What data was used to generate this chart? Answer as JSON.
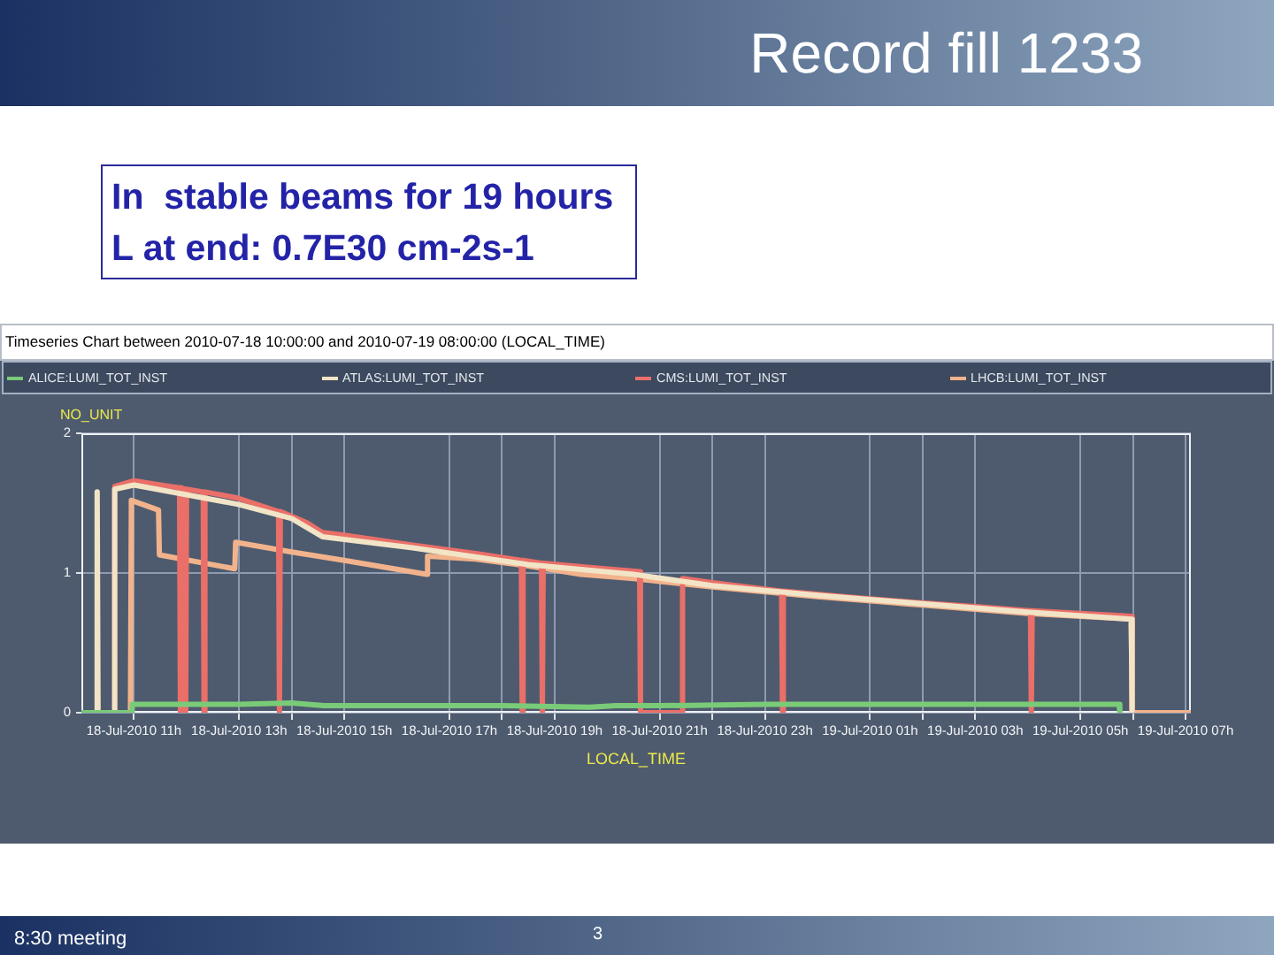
{
  "chart_data": {
    "type": "line",
    "title": "Record fill 1233",
    "subtitle": "Timeseries Chart between 2010-07-18 10:00:00 and 2010-07-19 08:00:00 (LOCAL_TIME)",
    "xlabel": "LOCAL_TIME",
    "ylabel": "NO_UNIT",
    "annotations": [
      "In  stable beams for 19 hours",
      "L at end: 0.7E30 cm-2s-1",
      "8:30 meeting",
      "3"
    ],
    "series": [
      {
        "name": "ALICE:LUMI_TOT_INST",
        "color": "#7acb78",
        "x": [
          "2010-07-18T10:00",
          "2010-07-18T10:57",
          "2010-07-18T10:58",
          "2010-07-18T12:00",
          "2010-07-18T13:00",
          "2010-07-18T14:00",
          "2010-07-18T14:37",
          "2010-07-18T16:00",
          "2010-07-18T18:00",
          "2010-07-18T19:40",
          "2010-07-18T20:10",
          "2010-07-18T21:00",
          "2010-07-18T23:00",
          "2010-07-19T01:00",
          "2010-07-19T03:00",
          "2010-07-19T05:44",
          "2010-07-19T05:45"
        ],
        "values": [
          0,
          0,
          0.06,
          0.06,
          0.06,
          0.07,
          0.05,
          0.05,
          0.05,
          0.04,
          0.05,
          0.05,
          0.06,
          0.06,
          0.06,
          0.06,
          0
        ]
      },
      {
        "name": "ATLAS:LUMI_TOT_INST",
        "color": "#f2e4c6",
        "x": [
          "2010-07-18T10:00",
          "2010-07-18T10:17",
          "2010-07-18T10:18",
          "2010-07-18T10:19",
          "2010-07-18T10:37",
          "2010-07-18T10:38",
          "2010-07-18T11:00",
          "2010-07-18T12:00",
          "2010-07-18T13:00",
          "2010-07-18T14:00",
          "2010-07-18T14:35",
          "2010-07-18T16:18",
          "2010-07-18T18:30",
          "2010-07-18T20:30",
          "2010-07-18T22:00",
          "2010-07-19T00:00",
          "2010-07-19T02:00",
          "2010-07-19T04:00",
          "2010-07-19T05:58",
          "2010-07-19T05:59"
        ],
        "values": [
          0,
          0,
          1.58,
          0,
          0,
          1.6,
          1.63,
          1.56,
          1.49,
          1.39,
          1.26,
          1.18,
          1.06,
          0.99,
          0.91,
          0.84,
          0.78,
          0.72,
          0.67,
          0
        ]
      },
      {
        "name": "CMS:LUMI_TOT_INST",
        "color": "#ea6f69",
        "x": [
          "2010-07-18T10:00",
          "2010-07-18T10:37",
          "2010-07-18T10:38",
          "2010-07-18T11:00",
          "2010-07-18T11:30",
          "2010-07-18T11:52",
          "2010-07-18T11:53",
          "2010-07-18T11:54",
          "2010-07-18T11:58",
          "2010-07-18T11:59",
          "2010-07-18T12:00",
          "2010-07-18T12:19",
          "2010-07-18T12:20",
          "2010-07-18T12:21",
          "2010-07-18T12:56",
          "2010-07-18T13:45",
          "2010-07-18T13:46",
          "2010-07-18T13:47",
          "2010-07-18T14:17",
          "2010-07-18T14:35",
          "2010-07-18T15:00",
          "2010-07-18T16:18",
          "2010-07-18T17:30",
          "2010-07-18T18:22",
          "2010-07-18T18:23",
          "2010-07-18T18:24",
          "2010-07-18T18:45",
          "2010-07-18T18:46",
          "2010-07-18T18:47",
          "2010-07-18T19:40",
          "2010-07-18T20:37",
          "2010-07-18T20:38",
          "2010-07-18T21:25",
          "2010-07-18T21:26",
          "2010-07-18T22:00",
          "2010-07-18T23:19",
          "2010-07-18T23:20",
          "2010-07-18T23:21",
          "2010-07-19T00:30",
          "2010-07-19T01:51",
          "2010-07-19T03:00",
          "2010-07-19T04:03",
          "2010-07-19T04:04",
          "2010-07-19T04:05",
          "2010-07-19T05:00",
          "2010-07-19T05:58",
          "2010-07-19T05:59"
        ],
        "values": [
          0,
          0,
          1.62,
          1.66,
          1.63,
          1.61,
          0,
          1.61,
          1.6,
          0,
          1.6,
          1.58,
          0,
          1.58,
          1.54,
          1.44,
          0,
          1.44,
          1.36,
          1.29,
          1.27,
          1.2,
          1.14,
          1.09,
          0,
          1.09,
          1.07,
          0,
          1.07,
          1.04,
          1.01,
          0,
          0,
          0.96,
          0.93,
          0.87,
          0,
          0.87,
          0.83,
          0.79,
          0.76,
          0.73,
          0,
          0.73,
          0.71,
          0.69,
          0
        ]
      },
      {
        "name": "LHCB:LUMI_TOT_INST",
        "color": "#f2b38c",
        "x": [
          "2010-07-18T10:00",
          "2010-07-18T10:56",
          "2010-07-18T10:57",
          "2010-07-18T11:28",
          "2010-07-18T11:29",
          "2010-07-18T12:55",
          "2010-07-18T12:56",
          "2010-07-18T14:00",
          "2010-07-18T15:00",
          "2010-07-18T16:34",
          "2010-07-18T16:35",
          "2010-07-18T17:30",
          "2010-07-18T18:30",
          "2010-07-18T19:30",
          "2010-07-18T20:30",
          "2010-07-18T22:00",
          "2010-07-19T00:00",
          "2010-07-19T02:00",
          "2010-07-19T04:00",
          "2010-07-19T05:58",
          "2010-07-19T05:59",
          "2010-07-19T07:06"
        ],
        "values": [
          0,
          0,
          1.52,
          1.45,
          1.13,
          1.03,
          1.22,
          1.15,
          1.09,
          0.99,
          1.12,
          1.1,
          1.05,
          0.99,
          0.96,
          0.9,
          0.83,
          0.77,
          0.71,
          0.67,
          0,
          0
        ]
      }
    ],
    "xlim": [
      "2010-07-18T10:00",
      "2010-07-19T07:06"
    ],
    "xticks": [
      {
        "value": "2010-07-18T11:00",
        "label": "18-Jul-2010 11h"
      },
      {
        "value": "2010-07-18T13:00",
        "label": "18-Jul-2010 13h"
      },
      {
        "value": "2010-07-18T14:00",
        "label": null
      },
      {
        "value": "2010-07-18T15:00",
        "label": "18-Jul-2010 15h"
      },
      {
        "value": "2010-07-18T17:00",
        "label": "18-Jul-2010 17h"
      },
      {
        "value": "2010-07-18T18:00",
        "label": null
      },
      {
        "value": "2010-07-18T19:00",
        "label": "18-Jul-2010 19h"
      },
      {
        "value": "2010-07-18T21:00",
        "label": "18-Jul-2010 21h"
      },
      {
        "value": "2010-07-18T22:00",
        "label": null
      },
      {
        "value": "2010-07-18T23:00",
        "label": "18-Jul-2010 23h"
      },
      {
        "value": "2010-07-19T01:00",
        "label": "19-Jul-2010 01h"
      },
      {
        "value": "2010-07-19T02:00",
        "label": null
      },
      {
        "value": "2010-07-19T03:00",
        "label": "19-Jul-2010 03h"
      },
      {
        "value": "2010-07-19T05:00",
        "label": "19-Jul-2010 05h"
      },
      {
        "value": "2010-07-19T06:00",
        "label": null
      },
      {
        "value": "2010-07-19T07:00",
        "label": "19-Jul-2010 07h"
      }
    ],
    "ylim": [
      0,
      2
    ],
    "yticks": [
      0,
      1,
      2
    ],
    "grid": true,
    "legend": "top"
  }
}
